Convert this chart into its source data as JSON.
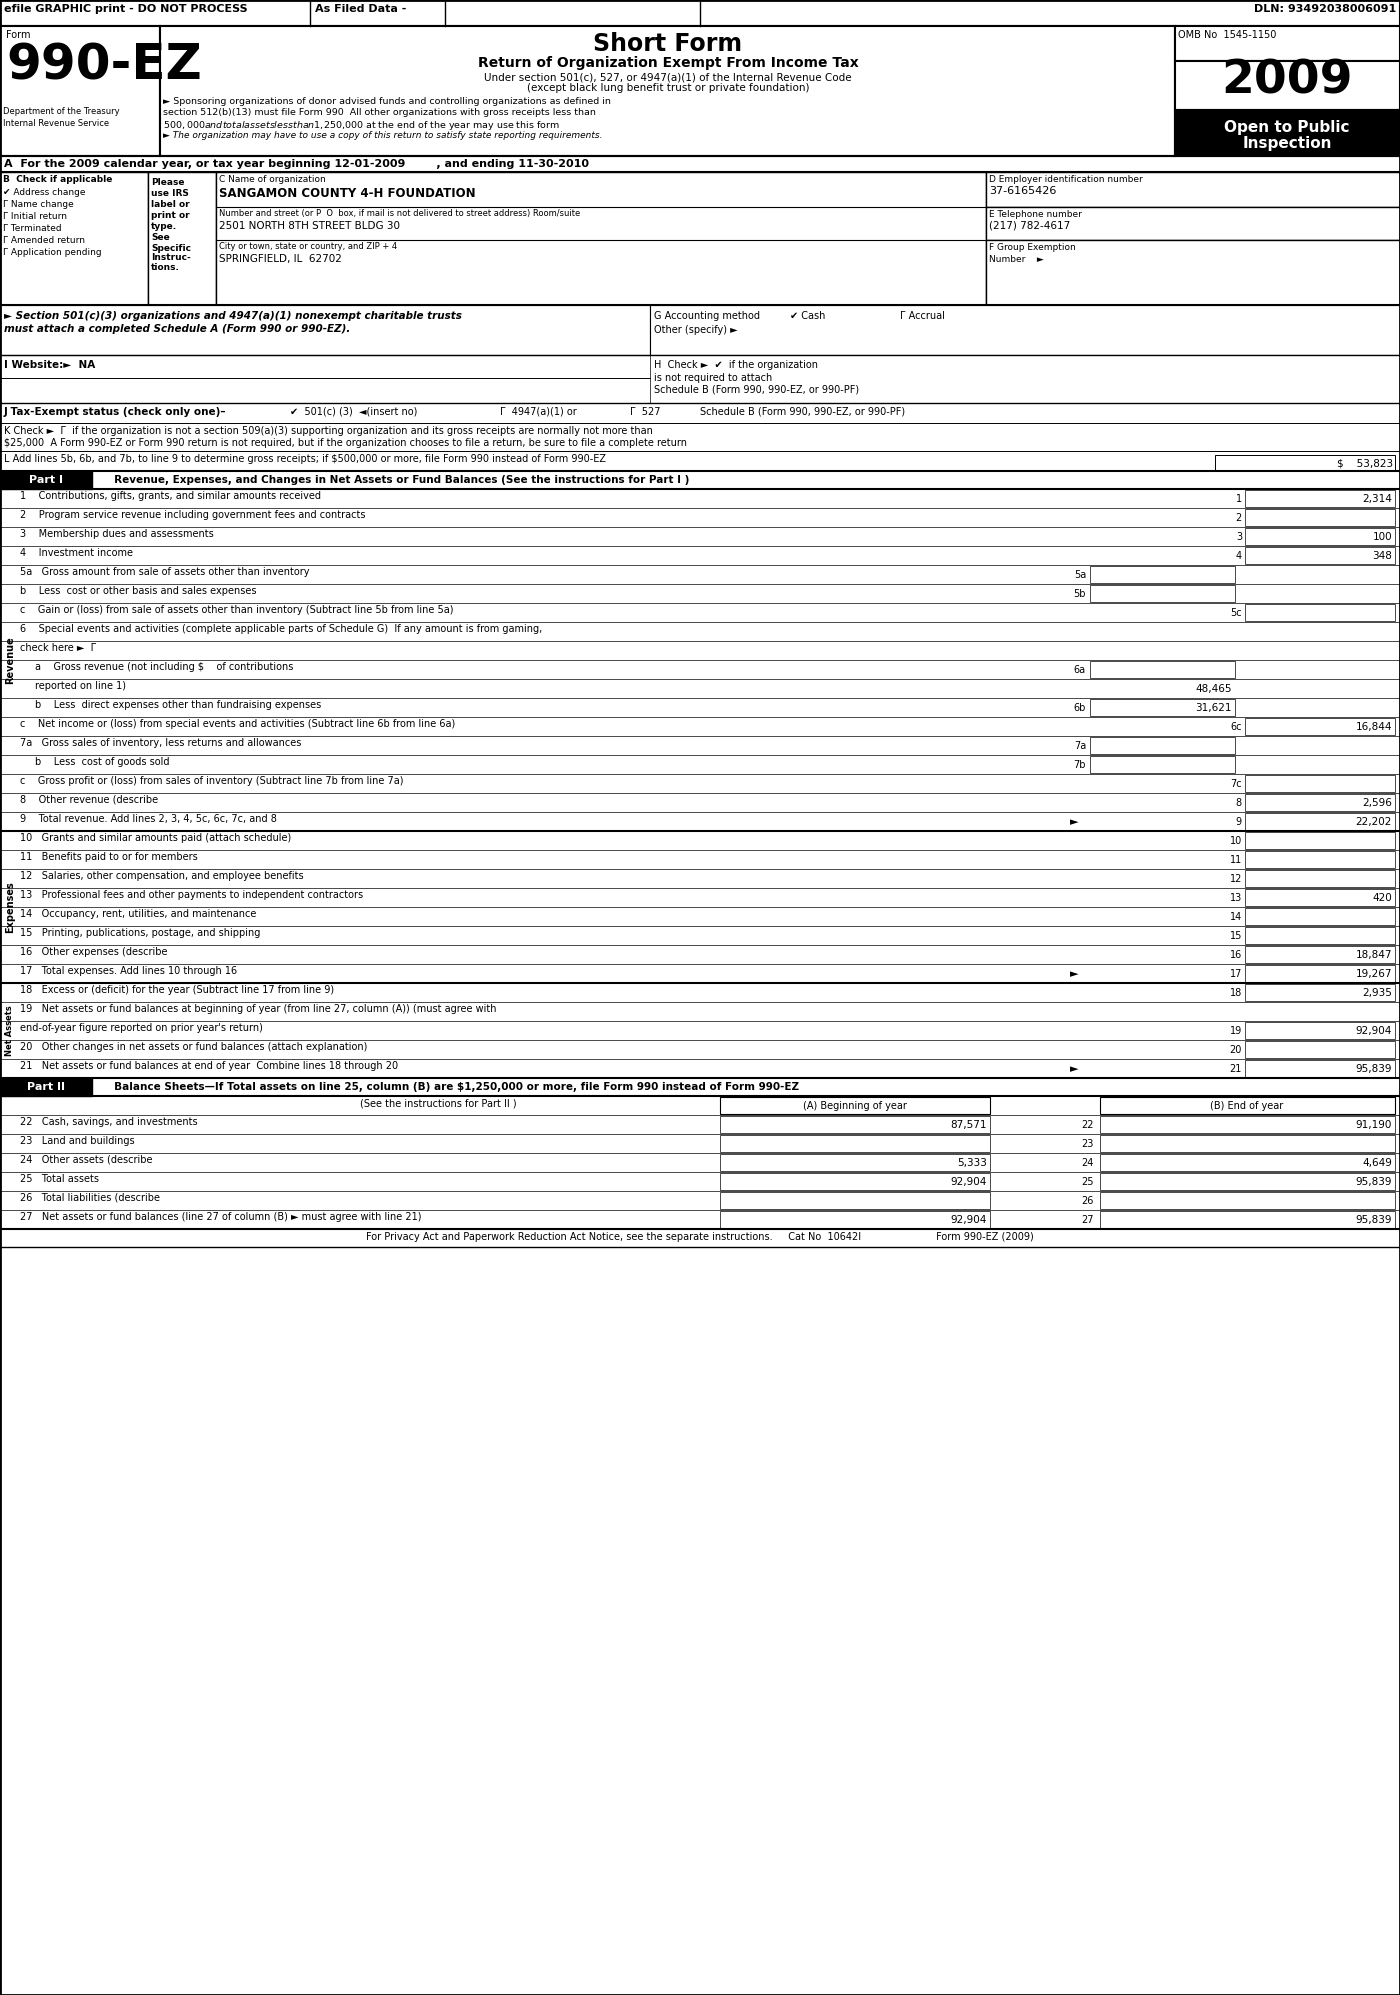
{
  "efile_text": "efile GRAPHIC print - DO NOT PROCESS",
  "as_filed": "As Filed Data -",
  "dln": "DLN: 93492038006091",
  "omb": "OMB No  1545-1150",
  "year": "2009",
  "open_to_public": "Open to Public",
  "inspection": "Inspection",
  "form_990ez": "990-EZ",
  "form_label": "Form",
  "dept_treasury": "Department of the Treasury",
  "irs": "Internal Revenue Service",
  "title": "Short Form",
  "subtitle": "Return of Organization Exempt From Income Tax",
  "subtitle2": "Under section 501(c), 527, or 4947(a)(1) of the Internal Revenue Code",
  "subtitle3": "(except black lung benefit trust or private foundation)",
  "bullet1": "► Sponsoring organizations of donor advised funds and controlling organizations as defined in",
  "bullet1b": "section 512(b)(13) must file Form 990  All other organizations with gross receipts less than",
  "bullet1c": "$500,000 and total assets less than $1,250,000 at the end of the year may use this form",
  "bullet2": "► The organization may have to use a copy of this return to satisfy state reporting requirements.",
  "part_a": "A  For the 2009 calendar year, or tax year beginning 12-01-2009        , and ending 11-30-2010",
  "check_b": "B  Check if applicable",
  "address_change": "✔ Address change",
  "name_change": "Γ Name change",
  "initial_return": "Γ Initial return",
  "terminated": "Γ Terminated",
  "amended_return": "Γ Amended return",
  "app_pending": "Γ Application pending",
  "please_label": "Please",
  "use_irs": "use IRS",
  "label_or": "label or",
  "print_or": "print or",
  "type_": "type.",
  "see_": "See",
  "specific": "Specific",
  "instruc": "Instruc-",
  "tions": "tions.",
  "org_name_label": "C Name of organization",
  "org_name": "SANGAMON COUNTY 4-H FOUNDATION",
  "ein_label": "D Employer identification number",
  "ein": "37-6165426",
  "street_label": "Number and street (or P  O  box, if mail is not delivered to street address) Room/suite",
  "street": "2501 NORTH 8TH STREET BLDG 30",
  "phone_label": "E Telephone number",
  "phone": "(217) 782-4617",
  "city_label": "City or town, state or country, and ZIP + 4",
  "city": "SPRINGFIELD, IL  62702",
  "group_label": "F Group Exemption",
  "group_number": "Number    ►",
  "section501_text": "► Section 501(c)(3) organizations and 4947(a)(1) nonexempt charitable trusts",
  "section501_text2": "must attach a completed Schedule A (Form 990 or 990-EZ).",
  "accounting_label": "G Accounting method",
  "cash_check": "✔ Cash",
  "accrual_check": "Γ Accrual",
  "other_specify": "Other (specify) ►",
  "website_label": "I Website:►  NA",
  "h_check": "H  Check ►  ✔  if the organization",
  "h_check2": "is not required to attach",
  "h_check3": "Schedule B (Form 990, 990-EZ, or 990-PF)",
  "tax_exempt_label": "J Tax-Exempt status (check only one)–",
  "tax_501c3": "✔  501(c) (3)  ◄(insert no)",
  "tax_4947": "Γ  4947(a)(1) or",
  "tax_527": "Γ  527",
  "k_check": "K Check ►  Γ  if the organization is not a section 509(a)(3) supporting organization and its gross receipts are normally not more than",
  "k_check2": "$25,000  A Form 990-EZ or Form 990 return is not required, but if the organization chooses to file a return, be sure to file a complete return",
  "l_add": "L Add lines 5b, 6b, and 7b, to line 9 to determine gross receipts; if $500,000 or more, file Form 990 instead of Form 990-EZ",
  "l_value": "$    53,823",
  "col_a": "(A) Beginning of year",
  "col_b": "(B) End of year",
  "see_instructions_part2": "(See the instructions for Part II )",
  "footer": "For Privacy Act and Paperwork Reduction Act Notice, see the separate instructions.     Cat No  10642I                        Form 990-EZ (2009)",
  "bg_color": "#ffffff"
}
